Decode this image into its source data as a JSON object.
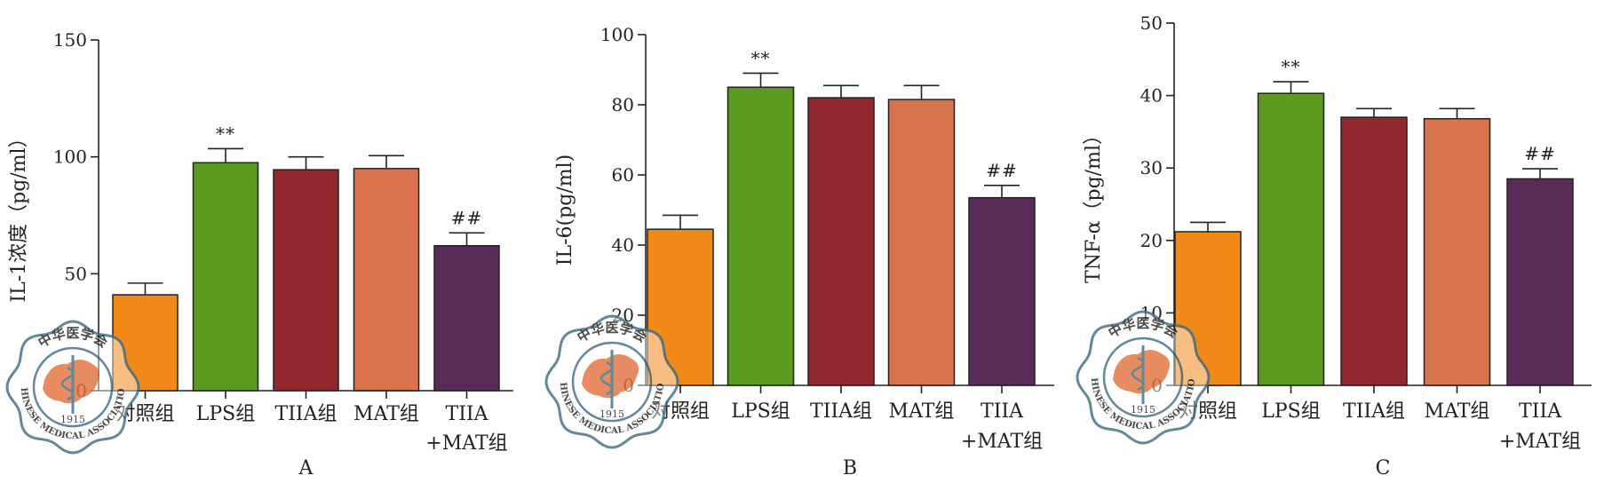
{
  "chart_data": [
    {
      "type": "bar",
      "panel_label": "A",
      "ylabel": "IL-1浓度（pg/ml）",
      "ylim": [
        0,
        150
      ],
      "yticks": [
        "0",
        "50",
        "100",
        "150"
      ],
      "categories": [
        [
          "对照组"
        ],
        [
          "LPS组"
        ],
        [
          "TIIA组"
        ],
        [
          "MAT组"
        ],
        [
          "TIIA",
          "+MAT组"
        ]
      ],
      "values": [
        41,
        97.5,
        94.5,
        95,
        62
      ],
      "errors": [
        5,
        6,
        5.5,
        5.5,
        5.5
      ],
      "annotations": [
        "",
        "**",
        "",
        "",
        "##"
      ]
    },
    {
      "type": "bar",
      "panel_label": "B",
      "ylabel": "IL-6(pg/ml)",
      "ylim": [
        0,
        100
      ],
      "yticks": [
        "0",
        "20",
        "40",
        "60",
        "80",
        "100"
      ],
      "categories": [
        [
          "对照组"
        ],
        [
          "LPS组"
        ],
        [
          "TIIA组"
        ],
        [
          "MAT组"
        ],
        [
          "TIIA",
          "+MAT组"
        ]
      ],
      "values": [
        44.5,
        85,
        82,
        81.5,
        53.5
      ],
      "errors": [
        4,
        4,
        3.5,
        4,
        3.5
      ],
      "annotations": [
        "",
        "**",
        "",
        "",
        "##"
      ]
    },
    {
      "type": "bar",
      "panel_label": "C",
      "ylabel": "TNF-α（pg/ml）",
      "ylim": [
        0,
        50
      ],
      "yticks": [
        "0",
        "10",
        "20",
        "30",
        "40",
        "50"
      ],
      "categories": [
        [
          "对照组"
        ],
        [
          "LPS组"
        ],
        [
          "TIIA组"
        ],
        [
          "MAT组"
        ],
        [
          "TIIA",
          "+MAT组"
        ]
      ],
      "values": [
        21.2,
        40.3,
        37,
        36.8,
        28.5
      ],
      "errors": [
        1.3,
        1.6,
        1.2,
        1.4,
        1.4
      ],
      "annotations": [
        "",
        "**",
        "",
        "",
        "##"
      ]
    }
  ],
  "colors": [
    "#f28a1a",
    "#5a9a1e",
    "#92282e",
    "#d9734e",
    "#5a2b58"
  ],
  "watermark": {
    "text_top": "中华医学会",
    "text_bottom": "CHINESE MEDICAL ASSOCIATION",
    "year": "1915",
    "color": "#3f6f86"
  }
}
